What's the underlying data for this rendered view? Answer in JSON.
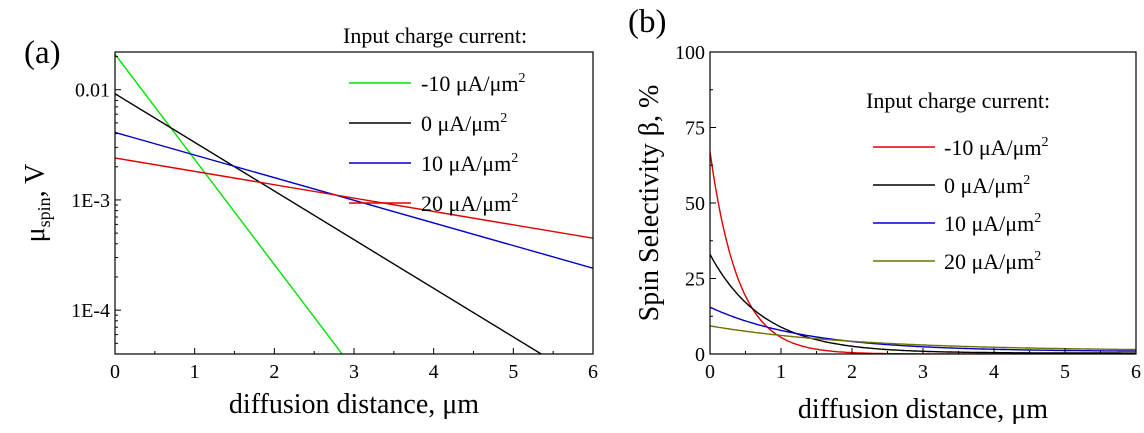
{
  "chart_data": [
    {
      "panel_label": "(a)",
      "type": "line",
      "xlabel": "diffusion distance, μm",
      "ylabel": {
        "main": "μ",
        "sub": "spin",
        "tail": ", V"
      },
      "xlim": [
        0,
        6
      ],
      "ylim": [
        4e-05,
        0.022
      ],
      "yscale": "log",
      "xticks": [
        0,
        1,
        2,
        3,
        4,
        5,
        6
      ],
      "xtick_labels": [
        "0",
        "1",
        "2",
        "3",
        "4",
        "5",
        "6"
      ],
      "yticks": [
        0.0001,
        0.001,
        0.01
      ],
      "ytick_labels": [
        "1E-4",
        "1E-3",
        "0.01"
      ],
      "legend_title": "Input charge current:",
      "legend_position": "top-right (outside plot)",
      "series": [
        {
          "name": "-10 μA/μm",
          "sup": "2",
          "color": "#00e000",
          "x": [
            0,
            2.85
          ],
          "y": [
            0.021,
            4e-05
          ]
        },
        {
          "name": "0 μA/μm",
          "sup": "2",
          "color": "#000000",
          "x": [
            0,
            5.35
          ],
          "y": [
            0.0092,
            4e-05
          ]
        },
        {
          "name": "10 μA/μm",
          "sup": "2",
          "color": "#0000c8",
          "x": [
            0,
            6
          ],
          "y": [
            0.0041,
            0.00024
          ]
        },
        {
          "name": "20  μA/μm",
          "sup": "2",
          "color": "#e00000",
          "x": [
            0,
            6
          ],
          "y": [
            0.0024,
            0.00045
          ]
        }
      ]
    },
    {
      "panel_label": "(b)",
      "type": "line",
      "xlabel": "diffusion distance, μm",
      "ylabel": "Spin Selectivity β, %",
      "xlim": [
        0,
        6
      ],
      "ylim": [
        0,
        100
      ],
      "xticks": [
        0,
        1,
        2,
        3,
        4,
        5,
        6
      ],
      "xtick_labels": [
        "0",
        "1",
        "2",
        "3",
        "4",
        "5",
        "6"
      ],
      "yticks": [
        0,
        25,
        50,
        75,
        100
      ],
      "ytick_labels": [
        "0",
        "25",
        "50",
        "75",
        "100"
      ],
      "legend_title": "Input charge current:",
      "legend_position": "top-right (inside plot)",
      "series": [
        {
          "name": "-10 μA/μm",
          "sup": "2",
          "color": "#e00000",
          "model": "exp",
          "y0": 67,
          "decay": 0.4,
          "floor": 0
        },
        {
          "name": "0 μA/μm",
          "sup": "2",
          "color": "#000000",
          "model": "exp",
          "y0": 33,
          "decay": 0.75,
          "floor": 0.3
        },
        {
          "name": "10 μA/μm",
          "sup": "2",
          "color": "#0000c8",
          "model": "exp",
          "y0": 15.5,
          "decay": 1.35,
          "floor": 0.8
        },
        {
          "name": "20  μA/μm",
          "sup": "2",
          "color": "#707000",
          "model": "exp",
          "y0": 9.3,
          "decay": 2.1,
          "floor": 1.0
        }
      ]
    }
  ]
}
